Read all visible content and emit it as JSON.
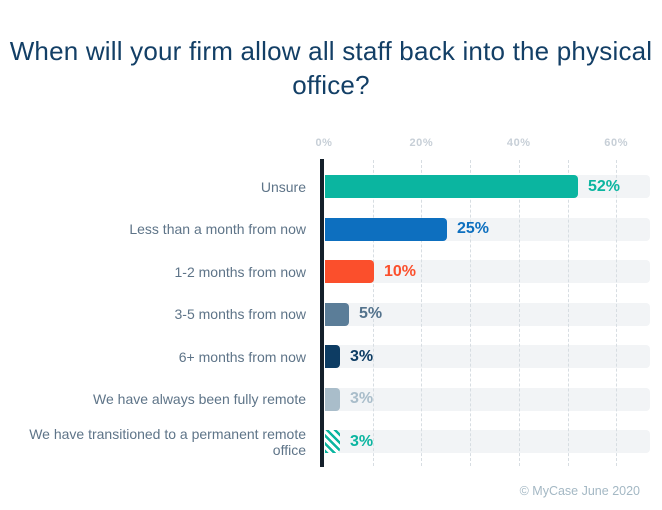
{
  "page": {
    "footer_credit": "© MyCase June 2020"
  },
  "chart_data": {
    "type": "bar",
    "orientation": "horizontal",
    "title": "When will your firm allow all staff back into the physical office?",
    "categories": [
      "Unsure",
      "Less than a month from now",
      "1-2 months from now",
      "3-5 months from now",
      "6+ months from now",
      "We have always been fully remote",
      "We have transitioned to a permanent remote office"
    ],
    "values": [
      52,
      25,
      10,
      5,
      3,
      3,
      3
    ],
    "value_labels": [
      "52%",
      "25%",
      "10%",
      "5%",
      "3%",
      "3%",
      "3%"
    ],
    "bar_colors": [
      "#0bb5a0",
      "#0d6fbf",
      "#fb4f2c",
      "#5b7d98",
      "#0d3c63",
      "#a9bdca",
      "#0bb5a0"
    ],
    "value_label_colors": [
      "#0bb5a0",
      "#0d6fbf",
      "#fb4f2c",
      "#53728c",
      "#0d3c63",
      "#a9bdca",
      "#0bb5a0"
    ],
    "hatched": [
      false,
      false,
      false,
      false,
      false,
      false,
      true
    ],
    "x_ticks": [
      "0%",
      "20%",
      "40%",
      "60%"
    ],
    "x_tick_values": [
      0,
      20,
      40,
      60
    ],
    "xlim": [
      0,
      66.7
    ],
    "grid": "dotted vertical lines every 10%",
    "axis_color": "#141f2a",
    "track_color": "#f2f4f6",
    "title_color": "#133f66",
    "tick_label_color": "#c7cfd7",
    "category_label_color": "#5e7488",
    "source": "© MyCase June 2020"
  }
}
